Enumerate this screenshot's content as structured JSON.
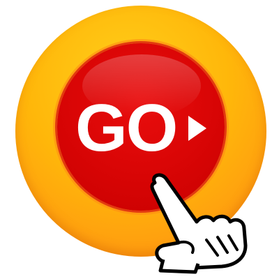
{
  "go_button": {
    "label": "GO",
    "arrow_icon": "play-triangle-icon",
    "pointer_icon": "pointing-hand-icon"
  },
  "colors": {
    "outer_ring": "#ffb70a",
    "button_face": "#d80505",
    "label": "#ffffff",
    "hand_outline": "#000000"
  }
}
